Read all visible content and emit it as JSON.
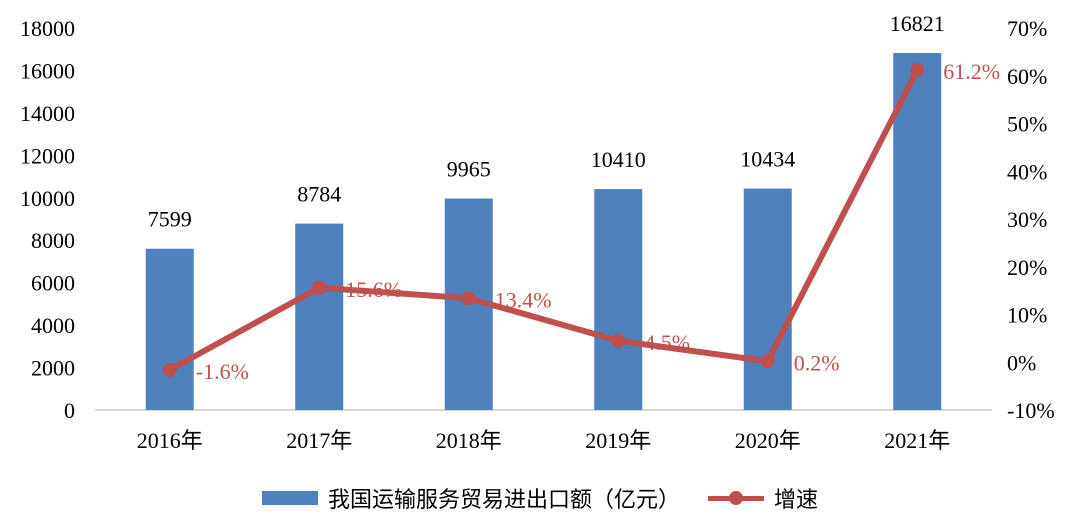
{
  "chart_data": {
    "type": "bar+line",
    "categories": [
      "2016年",
      "2017年",
      "2018年",
      "2019年",
      "2020年",
      "2021年"
    ],
    "series": [
      {
        "name": "我国运输服务贸易进出口额（亿元）",
        "type": "bar",
        "axis": "left",
        "values": [
          7599,
          8784,
          9965,
          10410,
          10434,
          16821
        ],
        "labels": [
          "7599",
          "8784",
          "9965",
          "10410",
          "10434",
          "16821"
        ],
        "color": "#4f81bd"
      },
      {
        "name": "增速",
        "type": "line",
        "axis": "right",
        "values": [
          -1.6,
          15.6,
          13.4,
          4.5,
          0.2,
          61.2
        ],
        "labels": [
          "-1.6%",
          "15.6%",
          "13.4%",
          "4.5%",
          "0.2%",
          "61.2%"
        ],
        "color": "#c0504d"
      }
    ],
    "y_left": {
      "ylim": [
        0,
        18000
      ],
      "ticks": [
        "0",
        "2000",
        "4000",
        "6000",
        "8000",
        "10000",
        "12000",
        "14000",
        "16000",
        "18000"
      ]
    },
    "y_right": {
      "ylim": [
        -10,
        70
      ],
      "ticks": [
        "-10%",
        "0%",
        "10%",
        "20%",
        "30%",
        "40%",
        "50%",
        "60%",
        "70%"
      ]
    },
    "legend_position": "bottom",
    "grid": false
  },
  "legend": {
    "bar_label": "我国运输服务贸易进出口额（亿元）",
    "line_label": "增速"
  }
}
